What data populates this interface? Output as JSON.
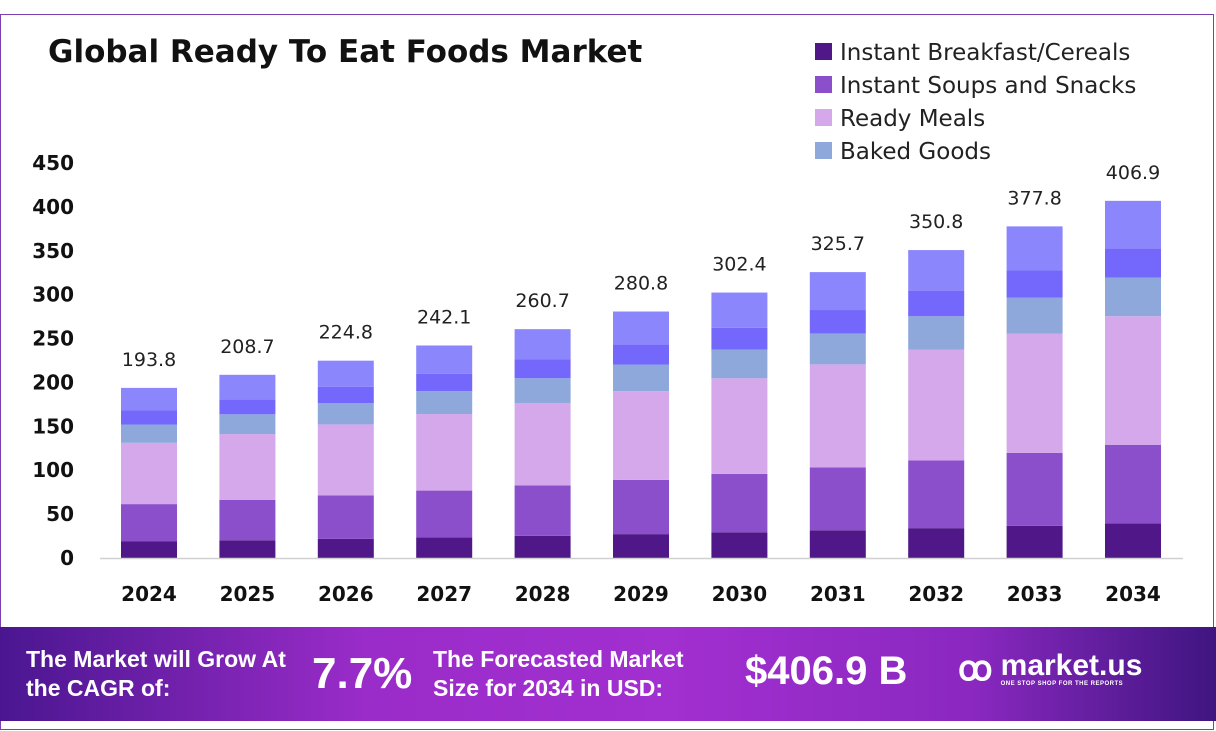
{
  "chart_data": {
    "type": "bar",
    "stacked": true,
    "title": "Global Ready To Eat Foods Market",
    "xlabel": "",
    "ylabel": "",
    "ylim": [
      0,
      450
    ],
    "yticks": [
      "0",
      "50",
      "100",
      "150",
      "200",
      "250",
      "300",
      "350",
      "400",
      "450"
    ],
    "categories": [
      "2024",
      "2025",
      "2026",
      "2027",
      "2028",
      "2029",
      "2030",
      "2031",
      "2032",
      "2033",
      "2034"
    ],
    "totals": [
      "193.8",
      "208.7",
      "224.8",
      "242.1",
      "260.7",
      "280.8",
      "302.4",
      "325.7",
      "350.8",
      "377.8",
      "406.9"
    ],
    "grid": false,
    "legend_position": "top-right",
    "series": [
      {
        "name": "Instant Breakfast/Cereals",
        "color": "#4f1787",
        "values": [
          18.8,
          20.2,
          21.8,
          23.5,
          25.3,
          27.2,
          29.3,
          31.6,
          34.0,
          36.6,
          39.5
        ]
      },
      {
        "name": "Instant Soups and Snacks",
        "color": "#8b4fcc",
        "values": [
          42.6,
          45.9,
          49.5,
          53.3,
          57.4,
          61.8,
          66.5,
          71.7,
          77.2,
          83.1,
          89.5
        ]
      },
      {
        "name": "Ready Meals",
        "color": "#d4a8ea",
        "values": [
          69.8,
          75.1,
          80.9,
          87.2,
          93.9,
          101.1,
          108.9,
          117.3,
          126.3,
          136.0,
          146.5
        ]
      },
      {
        "name": "Baked Goods",
        "color": "#8ea8dc",
        "values": [
          20.9,
          22.5,
          24.3,
          26.1,
          28.2,
          30.3,
          32.7,
          35.2,
          37.9,
          40.8,
          43.9
        ]
      },
      {
        "color": "#7468fc",
        "values": [
          15.9,
          17.1,
          18.4,
          19.9,
          21.4,
          23.0,
          24.8,
          26.7,
          28.8,
          31.0,
          33.4
        ]
      },
      {
        "color": "#8c86fc",
        "values": [
          25.8,
          27.9,
          29.9,
          32.1,
          34.5,
          37.4,
          40.2,
          43.2,
          46.6,
          50.3,
          54.1
        ]
      }
    ]
  },
  "banner": {
    "cagr_label": "The Market will Grow At the CAGR of:",
    "cagr_value": "7.7%",
    "forecast_label": "The Forecasted Market Size for 2034 in USD:",
    "forecast_value": "$406.9 B",
    "logo_name": "market.us",
    "logo_tagline": "ONE STOP SHOP FOR THE REPORTS"
  }
}
